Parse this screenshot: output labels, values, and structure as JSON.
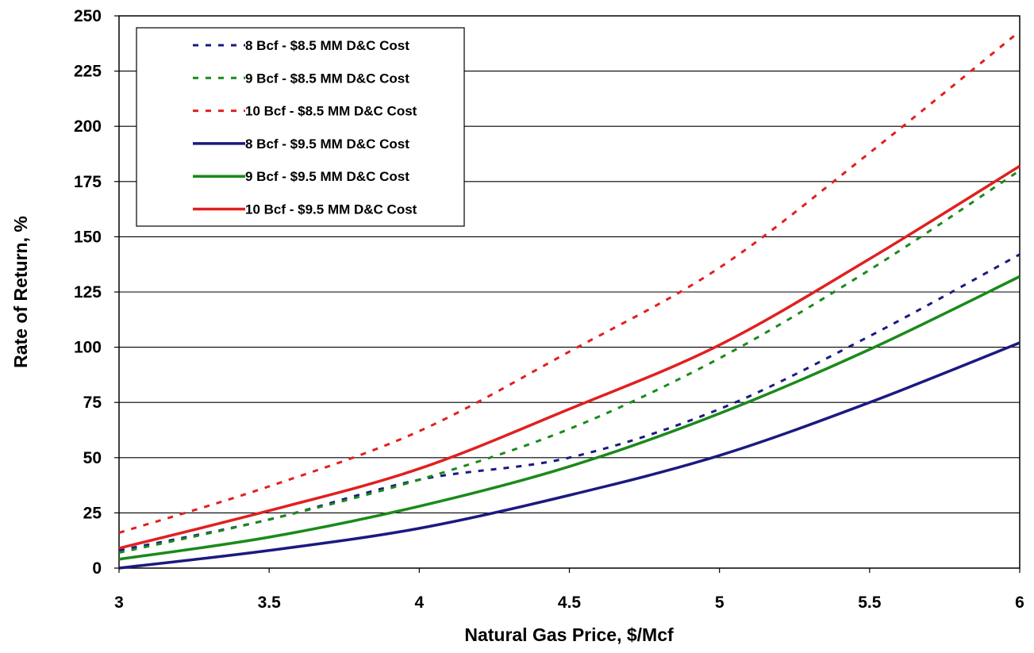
{
  "chart_data": {
    "type": "line",
    "xlabel": "Natural Gas Price, $/Mcf",
    "ylabel": "Rate of Return, %",
    "xlim": [
      3,
      6
    ],
    "ylim": [
      0,
      250
    ],
    "x_ticks": [
      "3",
      "3.5",
      "4",
      "4.5",
      "5",
      "5.5",
      "6"
    ],
    "y_ticks": [
      "0",
      "25",
      "50",
      "75",
      "100",
      "125",
      "150",
      "175",
      "200",
      "225",
      "250"
    ],
    "grid": "horizontal",
    "legend_position": "top-left",
    "x": [
      3,
      3.5,
      4,
      4.5,
      5,
      5.5,
      6
    ],
    "series": [
      {
        "name": "8 Bcf - $8.5 MM D&C Cost",
        "color": "#1a1a80",
        "dashed": true,
        "values": [
          8,
          22,
          40,
          50,
          72,
          105,
          142
        ]
      },
      {
        "name": "9 Bcf - $8.5 MM D&C Cost",
        "color": "#1a8a1a",
        "dashed": true,
        "values": [
          7,
          22,
          40,
          63,
          95,
          135,
          180
        ]
      },
      {
        "name": "10 Bcf - $8.5 MM D&C Cost",
        "color": "#e02020",
        "dashed": true,
        "values": [
          16,
          37,
          62,
          98,
          136,
          188,
          243
        ]
      },
      {
        "name": "8 Bcf - $9.5 MM D&C Cost",
        "color": "#1a1a80",
        "dashed": false,
        "values": [
          0,
          8,
          18,
          33,
          51,
          75,
          102
        ]
      },
      {
        "name": "9 Bcf - $9.5 MM D&C Cost",
        "color": "#1a8a1a",
        "dashed": false,
        "values": [
          4,
          14,
          28,
          46,
          70,
          99,
          132
        ]
      },
      {
        "name": "10 Bcf - $9.5 MM D&C Cost",
        "color": "#e02020",
        "dashed": false,
        "values": [
          9,
          26,
          45,
          72,
          101,
          140,
          182
        ]
      }
    ]
  }
}
